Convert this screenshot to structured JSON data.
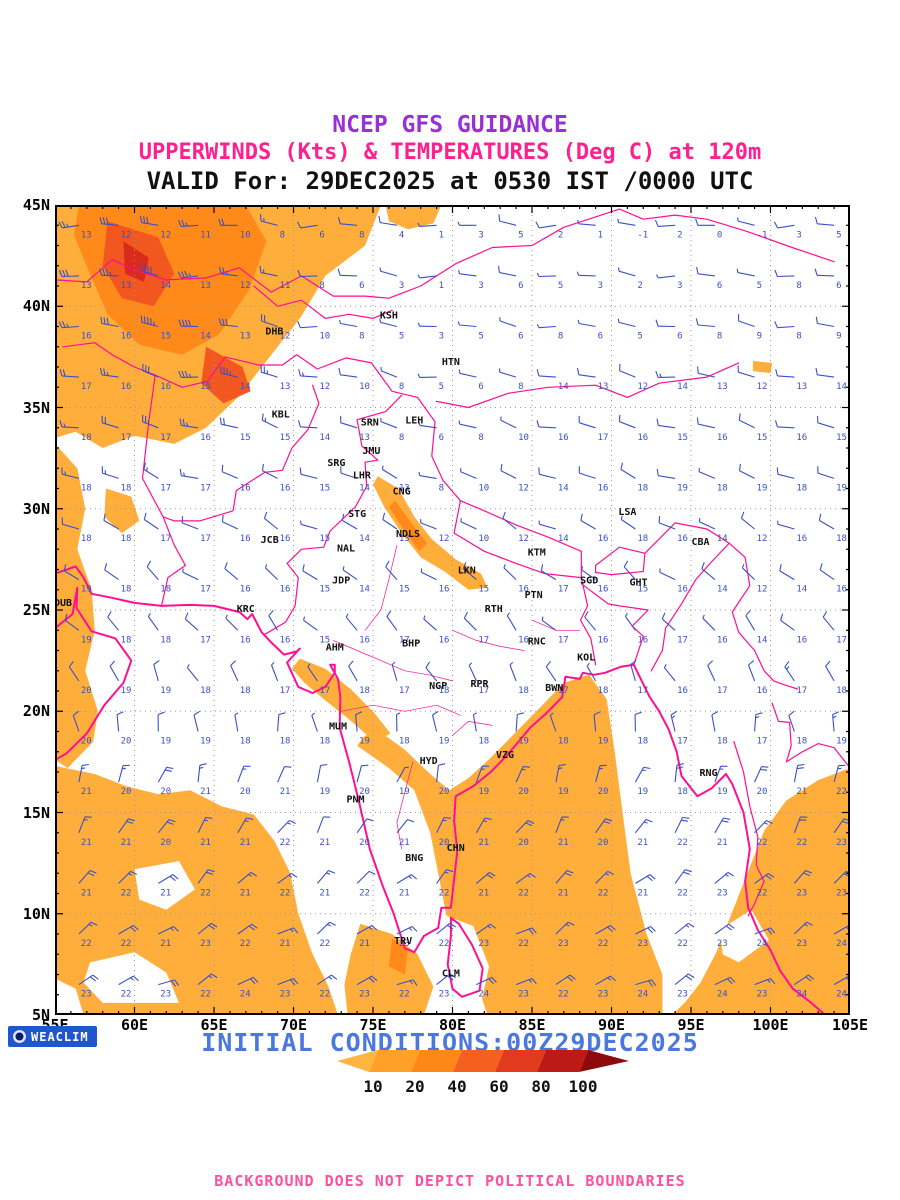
{
  "header": {
    "line1": "NCEP GFS GUIDANCE",
    "line2": "UPPERWINDS (Kts) & TEMPERATURES (Deg C) at 120m",
    "line3": "VALID For: 29DEC2025 at 0530 IST /0000 UTC",
    "line1_color": "#9b2fd6",
    "line2_color": "#ff1f8f"
  },
  "map": {
    "lon_min": 55,
    "lon_max": 105,
    "lat_min": 5,
    "lat_max": 45,
    "x_tick_labels": [
      "55E",
      "60E",
      "65E",
      "70E",
      "75E",
      "80E",
      "85E",
      "90E",
      "95E",
      "100E",
      "105E"
    ],
    "y_tick_labels": [
      "45N",
      "40N",
      "35N",
      "30N",
      "25N",
      "20N",
      "15N",
      "10N",
      "5N"
    ],
    "boundary_color": "#ff0f92",
    "barb_color": "#3a50c8",
    "grid_color": "#9a9a9a",
    "shade_colors": {
      "light": "#ffae3c",
      "mid": "#ff8a1a",
      "deep": "#f2571f",
      "red": "#d92b1c"
    },
    "cities": [
      {
        "code": "DHB",
        "lon": 68.8,
        "lat": 38.6
      },
      {
        "code": "KSH",
        "lon": 76.0,
        "lat": 39.4
      },
      {
        "code": "HTN",
        "lon": 79.9,
        "lat": 37.1
      },
      {
        "code": "KBL",
        "lon": 69.2,
        "lat": 34.5
      },
      {
        "code": "SRN",
        "lon": 74.8,
        "lat": 34.1
      },
      {
        "code": "LEH",
        "lon": 77.6,
        "lat": 34.2
      },
      {
        "code": "JMU",
        "lon": 74.9,
        "lat": 32.7
      },
      {
        "code": "SRG",
        "lon": 72.7,
        "lat": 32.1
      },
      {
        "code": "LHR",
        "lon": 74.3,
        "lat": 31.5
      },
      {
        "code": "CNG",
        "lon": 76.8,
        "lat": 30.7
      },
      {
        "code": "STG",
        "lon": 74.0,
        "lat": 29.6
      },
      {
        "code": "NDLS",
        "lon": 77.2,
        "lat": 28.6
      },
      {
        "code": "JCB",
        "lon": 68.5,
        "lat": 28.3
      },
      {
        "code": "NAL",
        "lon": 73.3,
        "lat": 27.9
      },
      {
        "code": "LKN",
        "lon": 80.9,
        "lat": 26.8
      },
      {
        "code": "KTM",
        "lon": 85.3,
        "lat": 27.7
      },
      {
        "code": "LSA",
        "lon": 91.0,
        "lat": 29.7
      },
      {
        "code": "CBA",
        "lon": 95.6,
        "lat": 28.2
      },
      {
        "code": "GHT",
        "lon": 91.7,
        "lat": 26.2
      },
      {
        "code": "JDP",
        "lon": 73.0,
        "lat": 26.3
      },
      {
        "code": "PTN",
        "lon": 85.1,
        "lat": 25.6
      },
      {
        "code": "RTH",
        "lon": 82.6,
        "lat": 24.9
      },
      {
        "code": "SGD",
        "lon": 88.6,
        "lat": 26.3
      },
      {
        "code": "KRC",
        "lon": 67.0,
        "lat": 24.9
      },
      {
        "code": "AHM",
        "lon": 72.6,
        "lat": 23.0
      },
      {
        "code": "BHP",
        "lon": 77.4,
        "lat": 23.2
      },
      {
        "code": "RNC",
        "lon": 85.3,
        "lat": 23.3
      },
      {
        "code": "KOL",
        "lon": 88.4,
        "lat": 22.5
      },
      {
        "code": "NGP",
        "lon": 79.1,
        "lat": 21.1
      },
      {
        "code": "RPR",
        "lon": 81.7,
        "lat": 21.2
      },
      {
        "code": "BWN",
        "lon": 86.4,
        "lat": 21.0
      },
      {
        "code": "MUM",
        "lon": 72.8,
        "lat": 19.1
      },
      {
        "code": "HYD",
        "lon": 78.5,
        "lat": 17.4
      },
      {
        "code": "VZG",
        "lon": 83.3,
        "lat": 17.7
      },
      {
        "code": "RNG",
        "lon": 96.1,
        "lat": 16.8
      },
      {
        "code": "PNM",
        "lon": 73.9,
        "lat": 15.5
      },
      {
        "code": "CHN",
        "lon": 80.2,
        "lat": 13.1
      },
      {
        "code": "BNG",
        "lon": 77.6,
        "lat": 12.6
      },
      {
        "code": "TRV",
        "lon": 76.9,
        "lat": 8.5
      },
      {
        "code": "CLM",
        "lon": 79.9,
        "lat": 6.9
      },
      {
        "code": "DUB",
        "lon": 55.5,
        "lat": 25.2
      }
    ],
    "wind_grid": {
      "lons": [
        56.5,
        59,
        61.5,
        64,
        66.5,
        69,
        71.5,
        74,
        76.5,
        79,
        81.5,
        84,
        86.5,
        89,
        91.5,
        94,
        96.5,
        99,
        101.5,
        104
      ],
      "lats": [
        44,
        41.5,
        39,
        36.5,
        34,
        31.5,
        29,
        26.5,
        24,
        21.5,
        19,
        16.5,
        14,
        11.5,
        9,
        6.5
      ],
      "temps": [
        [
          13,
          12,
          12,
          11,
          10,
          8,
          6,
          8,
          4,
          1,
          3,
          5,
          2,
          1,
          -1,
          2,
          0,
          -1,
          3,
          5
        ],
        [
          13,
          13,
          14,
          13,
          12,
          11,
          8,
          6,
          3,
          1,
          3,
          6,
          5,
          3,
          2,
          3,
          6,
          5,
          8,
          6
        ],
        [
          16,
          16,
          15,
          14,
          13,
          12,
          10,
          8,
          5,
          3,
          5,
          6,
          8,
          6,
          5,
          6,
          8,
          9,
          8,
          9
        ],
        [
          17,
          16,
          16,
          15,
          14,
          13,
          12,
          10,
          8,
          5,
          6,
          8,
          14,
          13,
          12,
          14,
          13,
          12,
          13,
          14
        ],
        [
          18,
          17,
          17,
          16,
          15,
          15,
          14,
          13,
          8,
          6,
          8,
          10,
          16,
          17,
          16,
          15,
          16,
          15,
          16,
          15
        ],
        [
          18,
          18,
          17,
          17,
          16,
          16,
          15,
          14,
          13,
          8,
          10,
          12,
          14,
          16,
          18,
          19,
          18,
          19,
          18,
          19
        ],
        [
          18,
          18,
          17,
          17,
          16,
          16,
          15,
          14,
          13,
          12,
          10,
          12,
          14,
          16,
          18,
          16,
          14,
          12,
          16,
          18
        ],
        [
          19,
          18,
          18,
          17,
          16,
          16,
          15,
          14,
          15,
          16,
          15,
          16,
          17,
          16,
          15,
          16,
          14,
          12,
          14,
          16
        ],
        [
          19,
          18,
          18,
          17,
          16,
          16,
          15,
          16,
          17,
          16,
          17,
          16,
          17,
          16,
          16,
          17,
          16,
          14,
          16,
          17
        ],
        [
          20,
          19,
          19,
          18,
          18,
          17,
          17,
          18,
          17,
          18,
          17,
          18,
          17,
          18,
          17,
          16,
          17,
          16,
          17,
          18
        ],
        [
          20,
          20,
          19,
          19,
          18,
          18,
          18,
          19,
          18,
          19,
          18,
          19,
          18,
          19,
          18,
          17,
          18,
          17,
          18,
          19
        ],
        [
          21,
          20,
          20,
          21,
          20,
          21,
          19,
          20,
          19,
          20,
          19,
          20,
          19,
          20,
          19,
          18,
          19,
          20,
          21,
          22
        ],
        [
          21,
          21,
          20,
          21,
          21,
          22,
          21,
          20,
          21,
          20,
          21,
          20,
          21,
          20,
          21,
          22,
          21,
          22,
          22,
          23
        ],
        [
          21,
          22,
          21,
          22,
          21,
          22,
          21,
          22,
          21,
          22,
          21,
          22,
          21,
          22,
          21,
          22,
          23,
          22,
          23,
          23
        ],
        [
          22,
          22,
          21,
          23,
          22,
          21,
          22,
          21,
          23,
          22,
          23,
          22,
          23,
          22,
          23,
          22,
          23,
          24,
          23,
          24
        ],
        [
          23,
          22,
          23,
          22,
          24,
          23,
          22,
          23,
          22,
          23,
          24,
          23,
          22,
          23,
          24,
          23,
          24,
          23,
          24,
          24
        ]
      ],
      "speeds": [
        [
          25,
          30,
          30,
          25,
          20,
          15,
          10,
          10,
          10,
          5,
          5,
          10,
          10,
          5,
          5,
          10,
          10,
          5,
          10,
          10
        ],
        [
          30,
          35,
          40,
          35,
          25,
          15,
          10,
          10,
          5,
          5,
          5,
          10,
          5,
          5,
          5,
          5,
          10,
          5,
          10,
          10
        ],
        [
          25,
          30,
          45,
          40,
          30,
          20,
          10,
          5,
          5,
          5,
          5,
          5,
          5,
          5,
          5,
          10,
          10,
          10,
          10,
          10
        ],
        [
          20,
          25,
          30,
          35,
          35,
          25,
          15,
          10,
          5,
          5,
          5,
          5,
          10,
          10,
          10,
          15,
          10,
          10,
          10,
          10
        ],
        [
          15,
          20,
          25,
          25,
          20,
          15,
          10,
          10,
          5,
          5,
          5,
          5,
          10,
          10,
          10,
          10,
          10,
          10,
          10,
          10
        ],
        [
          15,
          15,
          15,
          15,
          10,
          10,
          10,
          10,
          5,
          5,
          5,
          10,
          10,
          10,
          10,
          10,
          5,
          10,
          10,
          10
        ],
        [
          10,
          10,
          10,
          10,
          10,
          10,
          5,
          10,
          10,
          5,
          5,
          10,
          5,
          10,
          5,
          10,
          5,
          10,
          5,
          10
        ],
        [
          10,
          10,
          10,
          5,
          10,
          5,
          10,
          5,
          10,
          5,
          10,
          5,
          10,
          5,
          10,
          5,
          10,
          5,
          10,
          10
        ],
        [
          10,
          10,
          5,
          10,
          5,
          10,
          5,
          5,
          10,
          5,
          10,
          5,
          5,
          10,
          5,
          10,
          5,
          10,
          10,
          10
        ],
        [
          10,
          10,
          10,
          5,
          10,
          5,
          5,
          10,
          5,
          10,
          5,
          5,
          10,
          5,
          10,
          5,
          10,
          10,
          15,
          10
        ],
        [
          10,
          10,
          10,
          10,
          5,
          10,
          5,
          10,
          5,
          10,
          5,
          10,
          5,
          10,
          10,
          15,
          10,
          15,
          10,
          15
        ],
        [
          15,
          15,
          20,
          15,
          15,
          10,
          10,
          10,
          5,
          10,
          15,
          15,
          15,
          15,
          15,
          20,
          15,
          20,
          20,
          15
        ],
        [
          15,
          20,
          20,
          15,
          15,
          15,
          10,
          10,
          10,
          15,
          15,
          20,
          15,
          20,
          15,
          20,
          20,
          15,
          20,
          20
        ],
        [
          20,
          15,
          20,
          20,
          15,
          15,
          15,
          10,
          15,
          15,
          20,
          15,
          20,
          15,
          20,
          20,
          15,
          20,
          20,
          20
        ],
        [
          15,
          20,
          15,
          20,
          20,
          15,
          15,
          15,
          15,
          20,
          15,
          20,
          15,
          20,
          20,
          15,
          20,
          20,
          15,
          20
        ],
        [
          20,
          15,
          20,
          15,
          20,
          20,
          15,
          20,
          15,
          20,
          20,
          15,
          20,
          15,
          20,
          20,
          20,
          15,
          20,
          15
        ]
      ],
      "dirs_by_row": [
        270,
        272,
        275,
        278,
        282,
        288,
        295,
        305,
        315,
        330,
        350,
        15,
        30,
        45,
        55,
        60
      ]
    }
  },
  "footer": {
    "logo_text": "WEACLIM",
    "logo_bg": "#1e56d0",
    "initial_conditions": "INITIAL CONDITIONS:00Z29DEC2025",
    "initial_conditions_color": "#4a78dc",
    "disclaimer": "BACKGROUND DOES NOT DEPICT POLITICAL BOUNDARIES",
    "disclaimer_color": "#ff4f9e",
    "scale": {
      "labels": [
        "10",
        "20",
        "40",
        "60",
        "80",
        "100"
      ],
      "colors": [
        "#ffb640",
        "#ffa128",
        "#ff8718",
        "#f4601e",
        "#e13a1c",
        "#bc1a15",
        "#8f0a0a"
      ]
    }
  }
}
